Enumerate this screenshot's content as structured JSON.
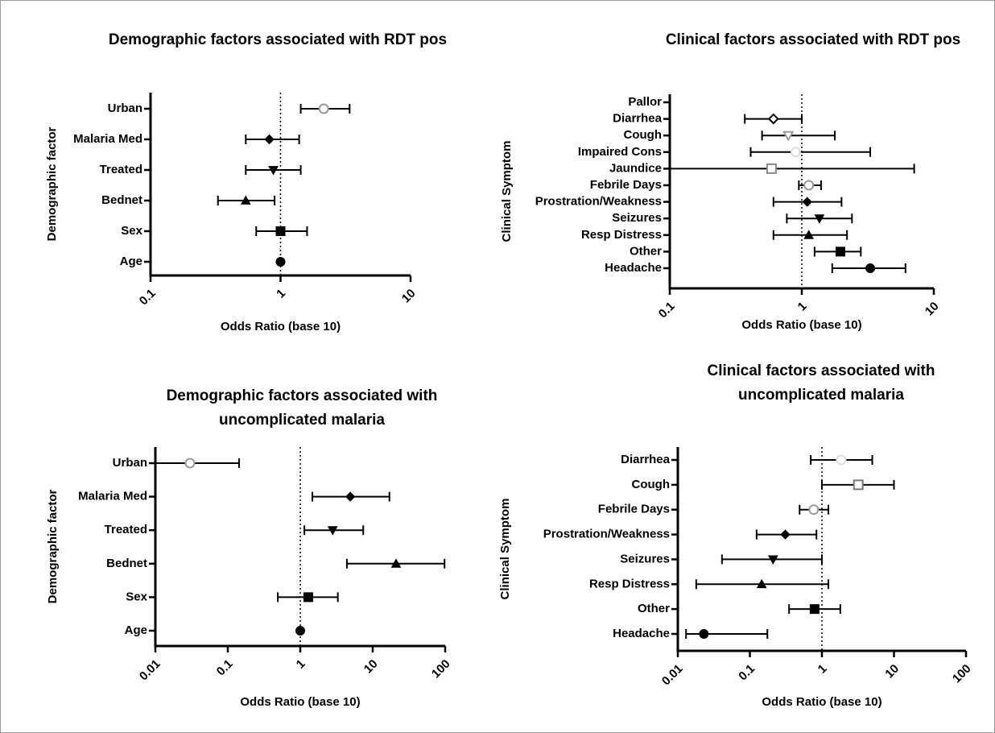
{
  "chart_data": [
    {
      "type": "forest",
      "title": [
        "Demographic factors associated with RDT pos"
      ],
      "xlabel": "Odds Ratio (base 10)",
      "ylabel": "Demographic factor",
      "xscale": "log",
      "xlim": [
        0.1,
        10
      ],
      "xticks": [
        0.1,
        1,
        10
      ],
      "reference_line": 1,
      "categories": [
        "Urban",
        "Malaria Med",
        "Treated",
        "Bednet",
        "Sex",
        "Age"
      ],
      "values": [
        2.15,
        0.82,
        0.88,
        0.54,
        1.0,
        1.0
      ],
      "ci_low": [
        1.43,
        0.54,
        0.54,
        0.33,
        0.65,
        null
      ],
      "ci_high": [
        3.4,
        1.39,
        1.43,
        0.9,
        1.6,
        null
      ],
      "markers": [
        "circle-open",
        "diamond",
        "triangle-down",
        "triangle",
        "square",
        "circle"
      ],
      "colors": [
        "#999999",
        "#000000",
        "#000000",
        "#000000",
        "#000000",
        "#000000"
      ]
    },
    {
      "type": "forest",
      "title": [
        "Clinical factors associated with RDT pos"
      ],
      "xlabel": "Odds Ratio (base 10)",
      "ylabel": "Clinical Symptom",
      "xscale": "log",
      "xlim": [
        0.1,
        10
      ],
      "xticks": [
        0.1,
        1,
        10
      ],
      "reference_line": 1,
      "categories": [
        "Pallor",
        "Diarrhea",
        "Cough",
        "Impaired Cons",
        "Jaundice",
        "Febrile Days",
        "Prostration/Weakness",
        "Seizures",
        "Resp Distress",
        "Other",
        "Headache"
      ],
      "values": [
        null,
        0.61,
        0.79,
        0.9,
        0.59,
        1.13,
        1.1,
        1.36,
        1.13,
        1.96,
        3.3
      ],
      "ci_low": [
        null,
        0.37,
        0.5,
        0.41,
        0.1,
        0.95,
        0.61,
        0.77,
        0.61,
        1.25,
        1.7
      ],
      "ci_high": [
        null,
        1.0,
        1.78,
        3.3,
        7.1,
        1.4,
        2.0,
        2.4,
        2.2,
        2.8,
        6.1
      ],
      "markers": [
        "circle",
        "diamond-open",
        "triangle-down-open",
        "circle-open",
        "square-open",
        "circle-open",
        "diamond",
        "triangle-down",
        "triangle",
        "square",
        "circle"
      ],
      "colors": [
        "#000000",
        "#000000",
        "#999999",
        "#dddddd",
        "#888888",
        "#999999",
        "#000000",
        "#000000",
        "#000000",
        "#000000",
        "#000000"
      ]
    },
    {
      "type": "forest",
      "title": [
        "Demographic factors associated with",
        "uncomplicated malaria"
      ],
      "xlabel": "Odds Ratio (base 10)",
      "ylabel": "Demographic factor",
      "xscale": "log",
      "xlim": [
        0.01,
        100
      ],
      "xticks": [
        0.01,
        0.1,
        1,
        10,
        100
      ],
      "reference_line": 1,
      "categories": [
        "Urban",
        "Malaria Med",
        "Treated",
        "Bednet",
        "Sex",
        "Age"
      ],
      "values": [
        0.03,
        4.9,
        2.8,
        21,
        1.29,
        1.0
      ],
      "ci_low": [
        0.01,
        1.47,
        1.14,
        4.4,
        0.49,
        null
      ],
      "ci_high": [
        0.143,
        17,
        7.4,
        98,
        3.3,
        null
      ],
      "markers": [
        "circle-open",
        "diamond",
        "triangle-down",
        "triangle",
        "square",
        "circle"
      ],
      "colors": [
        "#999999",
        "#000000",
        "#000000",
        "#000000",
        "#000000",
        "#000000"
      ]
    },
    {
      "type": "forest",
      "title": [
        "Clinical factors associated with",
        "uncomplicated malaria"
      ],
      "xlabel": "Odds Ratio (base 10)",
      "ylabel": "Clinical Symptom",
      "xscale": "log",
      "xlim": [
        0.01,
        100
      ],
      "xticks": [
        0.01,
        0.1,
        1,
        10,
        100
      ],
      "reference_line": 1,
      "categories": [
        "Diarrhea",
        "Cough",
        "Febrile Days",
        "Prostration/Weakness",
        "Seizures",
        "Resp Distress",
        "Other",
        "Headache"
      ],
      "values": [
        1.85,
        3.2,
        0.77,
        0.31,
        0.21,
        0.146,
        0.79,
        0.023
      ],
      "ci_low": [
        0.7,
        1.0,
        0.49,
        0.124,
        0.041,
        0.018,
        0.35,
        0.013
      ],
      "ci_high": [
        5.0,
        10,
        1.23,
        0.84,
        1.0,
        1.23,
        1.8,
        0.175
      ],
      "markers": [
        "circle-open",
        "square-open",
        "circle-open",
        "diamond",
        "triangle-down",
        "triangle",
        "square",
        "circle"
      ],
      "colors": [
        "#dddddd",
        "#777777",
        "#999999",
        "#000000",
        "#000000",
        "#000000",
        "#000000",
        "#000000"
      ]
    }
  ]
}
